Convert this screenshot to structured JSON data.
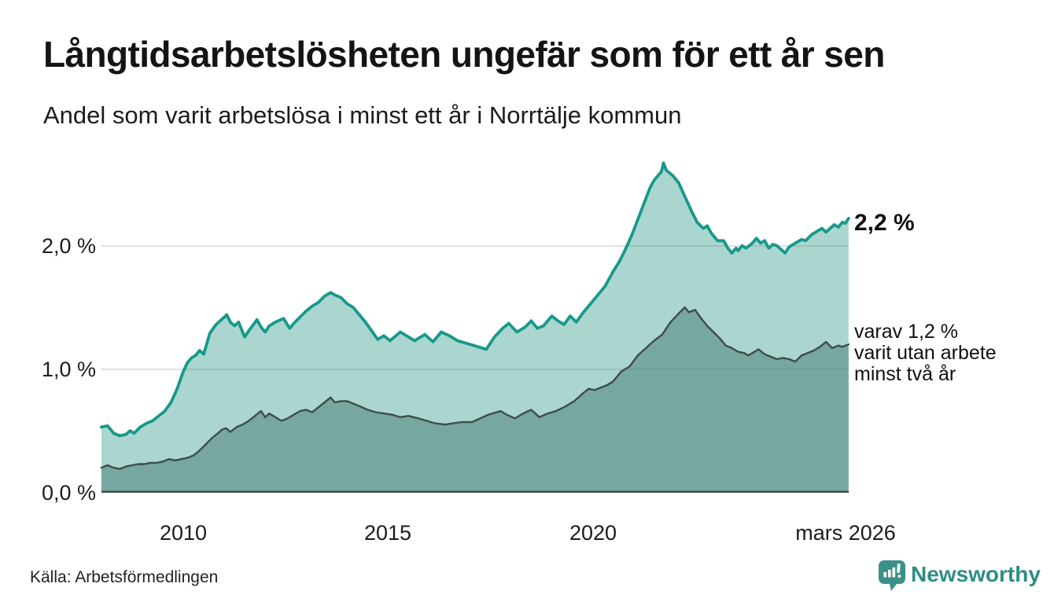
{
  "chart_data": {
    "type": "area",
    "title": "Långtidsarbetslösheten ungefär som för ett år sen",
    "subtitle": "Andel som varit arbetslösa i minst ett år i Norrtälje kommun",
    "x_axis": {
      "tick_labels": [
        "2010",
        "2015",
        "2020",
        "mars 2026"
      ],
      "tick_positions": [
        2010.0,
        2015.0,
        2020.0,
        2026.17
      ],
      "range": [
        2008.0,
        2026.25
      ],
      "unit": "år (månadsdata)"
    },
    "y_axis": {
      "tick_labels": [
        "0,0 %",
        "1,0 %",
        "2,0 %"
      ],
      "tick_values": [
        0,
        1,
        2
      ],
      "range": [
        0,
        2.8
      ],
      "grid": true,
      "unit": "procent"
    },
    "series": [
      {
        "name": "Andel arbetslösa minst ett år",
        "line_color": "#17998a",
        "fill_color": "#abd6d0",
        "latest_value": 2.2,
        "points": [
          [
            2008.0,
            0.52
          ],
          [
            2008.15,
            0.53
          ],
          [
            2008.3,
            0.47
          ],
          [
            2008.45,
            0.45
          ],
          [
            2008.6,
            0.46
          ],
          [
            2008.7,
            0.49
          ],
          [
            2008.8,
            0.47
          ],
          [
            2008.95,
            0.52
          ],
          [
            2009.1,
            0.55
          ],
          [
            2009.25,
            0.57
          ],
          [
            2009.4,
            0.61
          ],
          [
            2009.55,
            0.65
          ],
          [
            2009.7,
            0.72
          ],
          [
            2009.85,
            0.83
          ],
          [
            2010.0,
            0.97
          ],
          [
            2010.1,
            1.04
          ],
          [
            2010.2,
            1.08
          ],
          [
            2010.3,
            1.1
          ],
          [
            2010.4,
            1.14
          ],
          [
            2010.5,
            1.11
          ],
          [
            2010.65,
            1.28
          ],
          [
            2010.8,
            1.35
          ],
          [
            2010.9,
            1.38
          ],
          [
            2011.0,
            1.41
          ],
          [
            2011.06,
            1.43
          ],
          [
            2011.15,
            1.37
          ],
          [
            2011.25,
            1.34
          ],
          [
            2011.35,
            1.37
          ],
          [
            2011.5,
            1.25
          ],
          [
            2011.6,
            1.3
          ],
          [
            2011.8,
            1.39
          ],
          [
            2011.9,
            1.33
          ],
          [
            2012.0,
            1.29
          ],
          [
            2012.1,
            1.34
          ],
          [
            2012.25,
            1.37
          ],
          [
            2012.45,
            1.4
          ],
          [
            2012.6,
            1.32
          ],
          [
            2012.7,
            1.36
          ],
          [
            2012.85,
            1.41
          ],
          [
            2013.0,
            1.46
          ],
          [
            2013.15,
            1.5
          ],
          [
            2013.3,
            1.53
          ],
          [
            2013.45,
            1.58
          ],
          [
            2013.6,
            1.61
          ],
          [
            2013.7,
            1.59
          ],
          [
            2013.85,
            1.57
          ],
          [
            2014.0,
            1.52
          ],
          [
            2014.15,
            1.49
          ],
          [
            2014.3,
            1.43
          ],
          [
            2014.45,
            1.37
          ],
          [
            2014.6,
            1.3
          ],
          [
            2014.75,
            1.23
          ],
          [
            2014.9,
            1.26
          ],
          [
            2015.05,
            1.22
          ],
          [
            2015.3,
            1.29
          ],
          [
            2015.5,
            1.25
          ],
          [
            2015.65,
            1.22
          ],
          [
            2015.9,
            1.27
          ],
          [
            2016.1,
            1.21
          ],
          [
            2016.3,
            1.29
          ],
          [
            2016.5,
            1.26
          ],
          [
            2016.7,
            1.22
          ],
          [
            2016.9,
            1.2
          ],
          [
            2017.1,
            1.18
          ],
          [
            2017.4,
            1.15
          ],
          [
            2017.6,
            1.25
          ],
          [
            2017.8,
            1.32
          ],
          [
            2017.95,
            1.36
          ],
          [
            2018.15,
            1.29
          ],
          [
            2018.35,
            1.33
          ],
          [
            2018.5,
            1.38
          ],
          [
            2018.65,
            1.32
          ],
          [
            2018.8,
            1.34
          ],
          [
            2019.0,
            1.42
          ],
          [
            2019.15,
            1.38
          ],
          [
            2019.3,
            1.35
          ],
          [
            2019.45,
            1.42
          ],
          [
            2019.6,
            1.37
          ],
          [
            2019.75,
            1.44
          ],
          [
            2019.9,
            1.5
          ],
          [
            2020.1,
            1.58
          ],
          [
            2020.3,
            1.66
          ],
          [
            2020.5,
            1.78
          ],
          [
            2020.65,
            1.86
          ],
          [
            2020.8,
            1.96
          ],
          [
            2020.95,
            2.07
          ],
          [
            2021.1,
            2.2
          ],
          [
            2021.25,
            2.33
          ],
          [
            2021.4,
            2.46
          ],
          [
            2021.5,
            2.52
          ],
          [
            2021.6,
            2.56
          ],
          [
            2021.68,
            2.59
          ],
          [
            2021.73,
            2.66
          ],
          [
            2021.8,
            2.6
          ],
          [
            2021.95,
            2.56
          ],
          [
            2022.1,
            2.5
          ],
          [
            2022.25,
            2.39
          ],
          [
            2022.4,
            2.28
          ],
          [
            2022.55,
            2.18
          ],
          [
            2022.7,
            2.13
          ],
          [
            2022.8,
            2.15
          ],
          [
            2022.9,
            2.09
          ],
          [
            2023.05,
            2.03
          ],
          [
            2023.2,
            2.03
          ],
          [
            2023.3,
            1.97
          ],
          [
            2023.4,
            1.93
          ],
          [
            2023.5,
            1.97
          ],
          [
            2023.55,
            1.95
          ],
          [
            2023.65,
            1.99
          ],
          [
            2023.75,
            1.97
          ],
          [
            2023.9,
            2.01
          ],
          [
            2024.0,
            2.05
          ],
          [
            2024.1,
            2.01
          ],
          [
            2024.2,
            2.03
          ],
          [
            2024.3,
            1.97
          ],
          [
            2024.4,
            2.0
          ],
          [
            2024.5,
            1.99
          ],
          [
            2024.6,
            1.96
          ],
          [
            2024.7,
            1.93
          ],
          [
            2024.8,
            1.98
          ],
          [
            2024.95,
            2.01
          ],
          [
            2025.1,
            2.04
          ],
          [
            2025.2,
            2.03
          ],
          [
            2025.35,
            2.08
          ],
          [
            2025.5,
            2.11
          ],
          [
            2025.6,
            2.13
          ],
          [
            2025.7,
            2.1
          ],
          [
            2025.8,
            2.13
          ],
          [
            2025.9,
            2.16
          ],
          [
            2026.0,
            2.14
          ],
          [
            2026.1,
            2.18
          ],
          [
            2026.17,
            2.17
          ],
          [
            2026.25,
            2.21
          ]
        ]
      },
      {
        "name": "Varav utan arbete minst två år",
        "line_color": "#3d4d4b",
        "fill_color": "#76a7a0",
        "latest_value": 1.2,
        "points": [
          [
            2008.0,
            0.19
          ],
          [
            2008.15,
            0.21
          ],
          [
            2008.3,
            0.19
          ],
          [
            2008.45,
            0.18
          ],
          [
            2008.6,
            0.2
          ],
          [
            2008.75,
            0.21
          ],
          [
            2008.9,
            0.22
          ],
          [
            2009.05,
            0.22
          ],
          [
            2009.2,
            0.23
          ],
          [
            2009.35,
            0.23
          ],
          [
            2009.5,
            0.24
          ],
          [
            2009.65,
            0.26
          ],
          [
            2009.8,
            0.25
          ],
          [
            2009.95,
            0.26
          ],
          [
            2010.1,
            0.27
          ],
          [
            2010.25,
            0.29
          ],
          [
            2010.4,
            0.33
          ],
          [
            2010.55,
            0.38
          ],
          [
            2010.7,
            0.43
          ],
          [
            2010.85,
            0.47
          ],
          [
            2010.95,
            0.5
          ],
          [
            2011.05,
            0.51
          ],
          [
            2011.15,
            0.48
          ],
          [
            2011.3,
            0.52
          ],
          [
            2011.45,
            0.54
          ],
          [
            2011.6,
            0.57
          ],
          [
            2011.75,
            0.61
          ],
          [
            2011.9,
            0.65
          ],
          [
            2012.0,
            0.6
          ],
          [
            2012.1,
            0.63
          ],
          [
            2012.25,
            0.6
          ],
          [
            2012.4,
            0.57
          ],
          [
            2012.55,
            0.59
          ],
          [
            2012.7,
            0.62
          ],
          [
            2012.85,
            0.65
          ],
          [
            2013.0,
            0.66
          ],
          [
            2013.15,
            0.64
          ],
          [
            2013.3,
            0.68
          ],
          [
            2013.45,
            0.72
          ],
          [
            2013.6,
            0.76
          ],
          [
            2013.7,
            0.72
          ],
          [
            2013.85,
            0.73
          ],
          [
            2014.0,
            0.73
          ],
          [
            2014.15,
            0.71
          ],
          [
            2014.3,
            0.69
          ],
          [
            2014.5,
            0.66
          ],
          [
            2014.7,
            0.64
          ],
          [
            2014.9,
            0.63
          ],
          [
            2015.1,
            0.62
          ],
          [
            2015.3,
            0.6
          ],
          [
            2015.5,
            0.61
          ],
          [
            2015.75,
            0.59
          ],
          [
            2015.95,
            0.57
          ],
          [
            2016.15,
            0.55
          ],
          [
            2016.4,
            0.54
          ],
          [
            2016.6,
            0.55
          ],
          [
            2016.8,
            0.56
          ],
          [
            2017.05,
            0.56
          ],
          [
            2017.25,
            0.59
          ],
          [
            2017.45,
            0.62
          ],
          [
            2017.75,
            0.65
          ],
          [
            2017.9,
            0.62
          ],
          [
            2018.1,
            0.59
          ],
          [
            2018.3,
            0.63
          ],
          [
            2018.5,
            0.66
          ],
          [
            2018.7,
            0.6
          ],
          [
            2018.9,
            0.63
          ],
          [
            2019.1,
            0.65
          ],
          [
            2019.3,
            0.68
          ],
          [
            2019.55,
            0.73
          ],
          [
            2019.75,
            0.79
          ],
          [
            2019.9,
            0.83
          ],
          [
            2020.05,
            0.82
          ],
          [
            2020.2,
            0.84
          ],
          [
            2020.35,
            0.86
          ],
          [
            2020.5,
            0.89
          ],
          [
            2020.7,
            0.97
          ],
          [
            2020.9,
            1.01
          ],
          [
            2021.1,
            1.1
          ],
          [
            2021.3,
            1.16
          ],
          [
            2021.5,
            1.22
          ],
          [
            2021.7,
            1.27
          ],
          [
            2021.9,
            1.37
          ],
          [
            2022.1,
            1.44
          ],
          [
            2022.25,
            1.49
          ],
          [
            2022.35,
            1.45
          ],
          [
            2022.5,
            1.47
          ],
          [
            2022.65,
            1.4
          ],
          [
            2022.8,
            1.34
          ],
          [
            2022.95,
            1.29
          ],
          [
            2023.1,
            1.24
          ],
          [
            2023.25,
            1.18
          ],
          [
            2023.4,
            1.16
          ],
          [
            2023.55,
            1.13
          ],
          [
            2023.7,
            1.12
          ],
          [
            2023.8,
            1.1
          ],
          [
            2023.95,
            1.13
          ],
          [
            2024.05,
            1.15
          ],
          [
            2024.2,
            1.11
          ],
          [
            2024.35,
            1.09
          ],
          [
            2024.5,
            1.07
          ],
          [
            2024.65,
            1.08
          ],
          [
            2024.8,
            1.07
          ],
          [
            2024.95,
            1.05
          ],
          [
            2025.1,
            1.1
          ],
          [
            2025.25,
            1.12
          ],
          [
            2025.4,
            1.14
          ],
          [
            2025.55,
            1.17
          ],
          [
            2025.7,
            1.21
          ],
          [
            2025.85,
            1.16
          ],
          [
            2026.0,
            1.18
          ],
          [
            2026.1,
            1.17
          ],
          [
            2026.25,
            1.19
          ]
        ]
      }
    ],
    "annotations": {
      "latest_value_label": "2,2 %",
      "breakdown_lines": [
        "varav 1,2 %",
        "varit utan arbete",
        "minst två år"
      ]
    },
    "grid_color": "#64807c",
    "baseline_color": "#3f4b49"
  },
  "footer": {
    "source": "Källa: Arbetsförmedlingen",
    "brand": "Newsworthy"
  }
}
